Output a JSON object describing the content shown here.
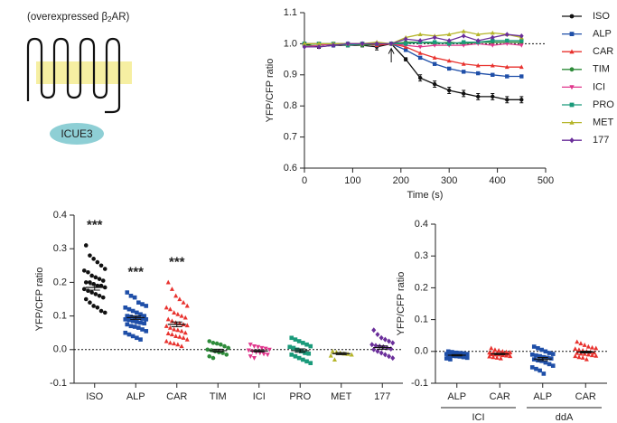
{
  "diagram": {
    "label_start": "(overexpressed β",
    "label_sub": "2",
    "label_end": "AR)",
    "sensor": "ICUE3"
  },
  "chart_data": [
    {
      "type": "line",
      "xlabel": "Time (s)",
      "ylabel": "YFP/CFP ratio",
      "x": [
        0,
        30,
        60,
        90,
        120,
        150,
        180,
        210,
        240,
        270,
        300,
        330,
        360,
        390,
        420,
        450
      ],
      "xlim": [
        0,
        500
      ],
      "xticks": [
        0,
        100,
        200,
        300,
        400,
        500
      ],
      "ylim": [
        0.6,
        1.1
      ],
      "yticks": [
        0.6,
        0.7,
        0.8,
        0.9,
        {
          "value": 1,
          "label": "1.0"
        },
        1.1
      ],
      "reference_line": 1,
      "arrow_x": 180,
      "legend": "right",
      "series": [
        {
          "name": "ISO",
          "color": "#111111",
          "marker": "circle",
          "values": [
            1.0,
            0.99,
            0.995,
            0.995,
            0.995,
            0.99,
            1.0,
            0.95,
            0.89,
            0.87,
            0.85,
            0.84,
            0.83,
            0.83,
            0.82,
            0.82
          ],
          "errors": [
            0.005,
            0.005,
            0.005,
            0.005,
            0.005,
            0.01,
            0.005,
            0.005,
            0.01,
            0.01,
            0.01,
            0.01,
            0.01,
            0.01,
            0.01,
            0.01
          ]
        },
        {
          "name": "ALP",
          "color": "#1f4fa8",
          "marker": "square",
          "values": [
            1.0,
            1.0,
            0.995,
            1.0,
            1.0,
            0.995,
            1.0,
            0.98,
            0.955,
            0.935,
            0.92,
            0.91,
            0.905,
            0.9,
            0.895,
            0.895
          ]
        },
        {
          "name": "CAR",
          "color": "#e8322e",
          "marker": "triangle",
          "values": [
            1.0,
            1.0,
            1.0,
            1.0,
            1.0,
            0.995,
            1.0,
            0.99,
            0.97,
            0.955,
            0.945,
            0.935,
            0.93,
            0.93,
            0.925,
            0.925
          ]
        },
        {
          "name": "TIM",
          "color": "#2e8b3a",
          "marker": "circle",
          "values": [
            0.995,
            0.995,
            1.0,
            1.0,
            0.995,
            1.0,
            1.0,
            1.005,
            1.005,
            1.0,
            1.005,
            1.0,
            1.005,
            1.005,
            1.005,
            1.005
          ]
        },
        {
          "name": "ICI",
          "color": "#e0368c",
          "marker": "triangle-down",
          "values": [
            0.99,
            0.995,
            1.0,
            0.995,
            1.0,
            1.0,
            1.0,
            0.995,
            0.99,
            0.995,
            0.995,
            0.995,
            1.0,
            0.995,
            1.0,
            0.995
          ]
        },
        {
          "name": "PRO",
          "color": "#1a9a7a",
          "marker": "square",
          "values": [
            1.0,
            1.0,
            1.0,
            0.995,
            1.0,
            1.0,
            1.0,
            1.0,
            1.005,
            1.005,
            1.0,
            1.005,
            1.005,
            1.01,
            1.01,
            1.01
          ]
        },
        {
          "name": "MET",
          "color": "#b5b52a",
          "marker": "triangle",
          "values": [
            1.0,
            1.0,
            1.0,
            1.0,
            1.0,
            1.005,
            1.0,
            1.02,
            1.03,
            1.025,
            1.03,
            1.04,
            1.03,
            1.035,
            1.03,
            1.02
          ]
        },
        {
          "name": "177",
          "color": "#6a2e9a",
          "marker": "diamond",
          "values": [
            0.99,
            0.99,
            0.995,
            1.0,
            1.0,
            1.0,
            1.0,
            1.015,
            1.01,
            1.02,
            1.01,
            1.025,
            1.01,
            1.02,
            1.03,
            1.025
          ]
        }
      ]
    },
    {
      "type": "strip",
      "ylabel": "YFP/CFP ratio",
      "ylim": [
        -0.1,
        0.4
      ],
      "yticks": [
        -0.1,
        {
          "value": 0,
          "label": "0.0"
        },
        0.1,
        0.2,
        0.3,
        0.4
      ],
      "reference_line": 0,
      "categories": [
        "ISO",
        "ALP",
        "CAR",
        "TIM",
        "ICI",
        "PRO",
        "MET",
        "177"
      ],
      "colors": [
        "#111111",
        "#1f4fa8",
        "#e8322e",
        "#2e8b3a",
        "#e0368c",
        "#1a9a7a",
        "#b5b52a",
        "#6a2e9a"
      ],
      "markers": [
        "circle",
        "square",
        "triangle",
        "circle",
        "triangle-down",
        "square",
        "triangle",
        "diamond"
      ],
      "annotations": [
        "***",
        "***",
        "***",
        null,
        null,
        null,
        null,
        null
      ],
      "means": [
        0.185,
        0.095,
        0.075,
        -0.003,
        -0.004,
        -0.003,
        -0.012,
        0.006
      ],
      "sems": [
        0.008,
        0.005,
        0.007,
        0.004,
        0.003,
        0.005,
        0.003,
        0.005
      ],
      "points": [
        [
          0.31,
          0.28,
          0.27,
          0.26,
          0.25,
          0.24,
          0.235,
          0.23,
          0.22,
          0.215,
          0.21,
          0.205,
          0.2,
          0.2,
          0.195,
          0.19,
          0.19,
          0.185,
          0.18,
          0.175,
          0.17,
          0.165,
          0.16,
          0.155,
          0.15,
          0.14,
          0.13,
          0.125,
          0.115,
          0.11
        ],
        [
          0.17,
          0.16,
          0.155,
          0.14,
          0.135,
          0.13,
          0.125,
          0.12,
          0.115,
          0.11,
          0.105,
          0.1,
          0.1,
          0.098,
          0.095,
          0.095,
          0.092,
          0.09,
          0.09,
          0.088,
          0.085,
          0.082,
          0.08,
          0.078,
          0.075,
          0.07,
          0.068,
          0.065,
          0.06,
          0.055,
          0.05,
          0.045,
          0.04,
          0.035,
          0.03
        ],
        [
          0.2,
          0.18,
          0.16,
          0.15,
          0.14,
          0.13,
          0.125,
          0.12,
          0.11,
          0.105,
          0.1,
          0.095,
          0.09,
          0.085,
          0.08,
          0.078,
          0.075,
          0.072,
          0.07,
          0.065,
          0.06,
          0.058,
          0.055,
          0.05,
          0.048,
          0.045,
          0.04,
          0.038,
          0.035,
          0.03,
          0.025,
          0.02,
          0.018,
          0.015,
          0.01
        ],
        [
          0.025,
          0.02,
          0.018,
          0.015,
          0.01,
          0.005,
          0.0,
          -0.002,
          -0.005,
          -0.008,
          -0.01,
          -0.015,
          -0.02,
          -0.025
        ],
        [
          0.015,
          0.01,
          0.008,
          0.005,
          0.003,
          0.0,
          -0.002,
          -0.005,
          -0.008,
          -0.01,
          -0.013,
          -0.015,
          -0.02,
          -0.025
        ],
        [
          0.035,
          0.03,
          0.025,
          0.02,
          0.015,
          0.01,
          0.008,
          0.005,
          0.0,
          -0.005,
          -0.01,
          -0.012,
          -0.015,
          -0.02,
          -0.025,
          -0.03,
          -0.035,
          -0.04
        ],
        [
          -0.005,
          -0.008,
          -0.01,
          -0.012,
          -0.013,
          -0.015,
          -0.018,
          -0.03
        ],
        [
          0.058,
          0.045,
          0.035,
          0.03,
          0.025,
          0.02,
          0.015,
          0.012,
          0.01,
          0.008,
          0.005,
          0.002,
          0.0,
          -0.005,
          -0.01,
          -0.015,
          -0.02,
          -0.025
        ]
      ]
    },
    {
      "type": "strip",
      "ylabel": "YFP/CFP ratio",
      "ylim": [
        -0.1,
        0.4
      ],
      "yticks": [
        -0.1,
        {
          "value": 0,
          "label": "0.0"
        },
        0.1,
        0.2,
        0.3,
        0.4
      ],
      "reference_line": 0,
      "categories": [
        "ALP",
        "CAR",
        "ALP",
        "CAR"
      ],
      "groups": [
        "ICI",
        "ddA"
      ],
      "colors": [
        "#1f4fa8",
        "#e8322e",
        "#1f4fa8",
        "#e8322e"
      ],
      "markers": [
        "square",
        "triangle",
        "square",
        "triangle"
      ],
      "means": [
        -0.012,
        -0.008,
        -0.024,
        -0.002
      ],
      "sems": [
        0.002,
        0.002,
        0.005,
        0.003
      ],
      "points": [
        [
          0.0,
          -0.002,
          -0.004,
          -0.005,
          -0.006,
          -0.008,
          -0.008,
          -0.01,
          -0.01,
          -0.011,
          -0.012,
          -0.012,
          -0.013,
          -0.014,
          -0.015,
          -0.016,
          -0.018,
          -0.02,
          -0.022,
          -0.025
        ],
        [
          0.01,
          0.005,
          0.003,
          0.0,
          -0.002,
          -0.003,
          -0.004,
          -0.005,
          -0.006,
          -0.007,
          -0.008,
          -0.008,
          -0.009,
          -0.01,
          -0.01,
          -0.012,
          -0.013,
          -0.015,
          -0.016,
          -0.018,
          -0.02,
          -0.022
        ],
        [
          0.015,
          0.01,
          0.005,
          0.0,
          -0.005,
          -0.008,
          -0.01,
          -0.013,
          -0.015,
          -0.018,
          -0.02,
          -0.022,
          -0.025,
          -0.028,
          -0.03,
          -0.035,
          -0.04,
          -0.045,
          -0.05,
          -0.055,
          -0.06,
          -0.07
        ],
        [
          0.03,
          0.025,
          0.02,
          0.015,
          0.012,
          0.01,
          0.008,
          0.005,
          0.003,
          0.0,
          -0.002,
          -0.004,
          -0.005,
          -0.007,
          -0.008,
          -0.01,
          -0.012,
          -0.014,
          -0.015,
          -0.018,
          -0.02,
          -0.025
        ]
      ]
    }
  ]
}
